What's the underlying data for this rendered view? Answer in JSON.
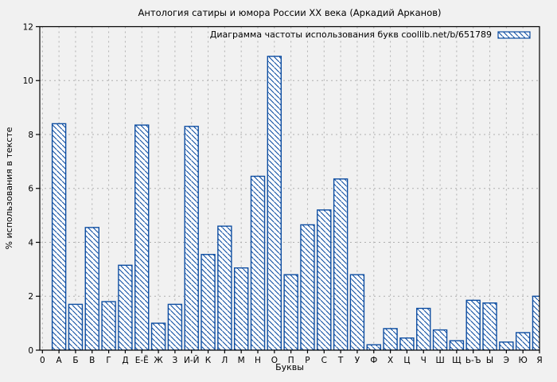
{
  "figure": {
    "background": "#f1f1f1"
  },
  "chart_data": {
    "type": "bar",
    "title": "Антология сатиры и юмора России XX века (Аркадий Арканов)",
    "legend_label": "Диаграмма частоты использования букв coollib.net/b/651789",
    "xlabel": "Буквы",
    "ylabel": "% использования в тексте",
    "origin_tick_label": "0",
    "categories": [
      "А",
      "Б",
      "В",
      "Г",
      "Д",
      "Е-Ё",
      "Ж",
      "З",
      "И-Й",
      "К",
      "Л",
      "М",
      "Н",
      "О",
      "П",
      "Р",
      "С",
      "Т",
      "У",
      "Ф",
      "Х",
      "Ц",
      "Ч",
      "Ш",
      "Щ",
      "Ь-Ъ",
      "Ы",
      "Э",
      "Ю",
      "Я"
    ],
    "values": [
      8.4,
      1.7,
      4.55,
      1.8,
      3.15,
      8.35,
      1.0,
      1.7,
      8.3,
      3.55,
      4.6,
      3.05,
      6.45,
      10.9,
      2.8,
      4.65,
      5.2,
      6.35,
      2.8,
      0.2,
      0.8,
      0.45,
      1.55,
      0.75,
      0.35,
      1.85,
      1.75,
      0.3,
      0.65,
      2.0
    ],
    "ylim": [
      0,
      12
    ],
    "yticks": [
      0,
      2,
      4,
      6,
      8,
      10,
      12
    ],
    "grid": true,
    "legend_position": "top-right-inside",
    "bar_style": "diagonal-hatch",
    "colors": {
      "bar_border": "#0d4da1",
      "bar_hatch": "#0d4da1",
      "bar_fill": "#ffffff",
      "background": "#f1f1f1",
      "grid": "#b0b0b0",
      "axis": "#000000",
      "text": "#000000"
    }
  }
}
